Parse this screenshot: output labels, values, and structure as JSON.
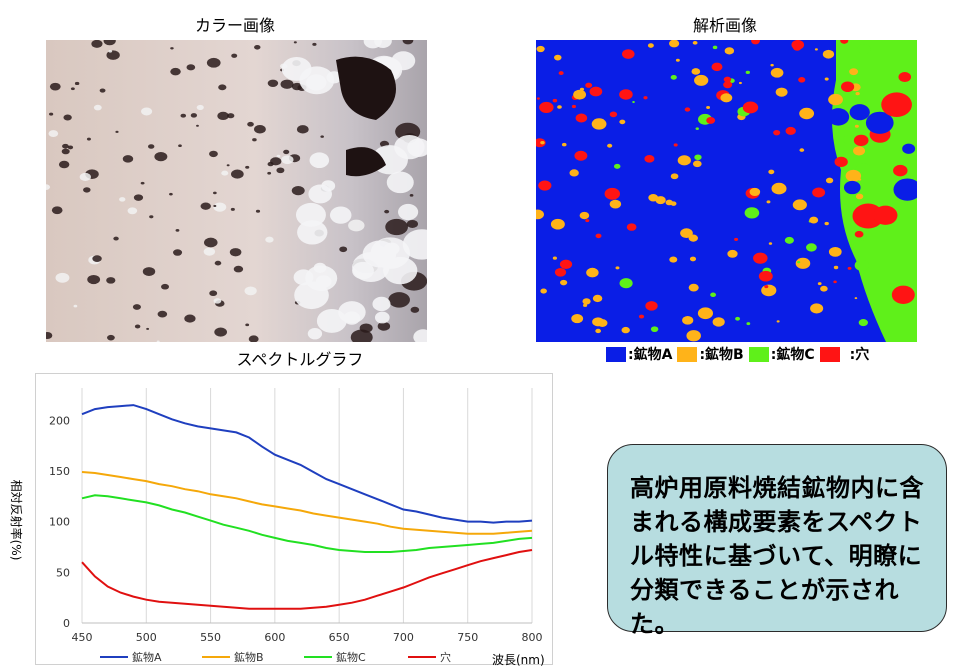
{
  "titles": {
    "color": "カラー画像",
    "analysis": "解析画像",
    "spectrum": "スペクトルグラフ"
  },
  "mineral_legend": [
    {
      "label": ":鉱物A",
      "color": "#0a1ee6"
    },
    {
      "label": ":鉱物B",
      "color": "#ffb319"
    },
    {
      "label": ":鉱物C",
      "color": "#5ff01a"
    },
    {
      "label": ":穴",
      "color": "#ff1414"
    }
  ],
  "conclusion": "高炉用原料焼結鉱物内に含まれる構成要素をスペクトル特性に基づいて、明瞭に分類できることが示された。",
  "chart_data": {
    "type": "line",
    "ylabel": "相対反射率(%)",
    "xlabel": "波長(nm)",
    "xlim": [
      450,
      800
    ],
    "ylim": [
      0,
      220
    ],
    "x_ticks": [
      450,
      500,
      550,
      600,
      650,
      700,
      750,
      800
    ],
    "y_ticks": [
      0,
      50,
      100,
      150,
      200
    ],
    "grid": "vertical",
    "legend_position": "bottom",
    "series": [
      {
        "name": "鉱物A",
        "color": "#1f3fbf",
        "points": [
          [
            450,
            206
          ],
          [
            460,
            211
          ],
          [
            470,
            213
          ],
          [
            480,
            214
          ],
          [
            490,
            215
          ],
          [
            500,
            211
          ],
          [
            510,
            206
          ],
          [
            520,
            201
          ],
          [
            530,
            197
          ],
          [
            540,
            194
          ],
          [
            550,
            192
          ],
          [
            560,
            190
          ],
          [
            570,
            188
          ],
          [
            580,
            183
          ],
          [
            590,
            174
          ],
          [
            600,
            166
          ],
          [
            610,
            161
          ],
          [
            620,
            156
          ],
          [
            630,
            149
          ],
          [
            640,
            142
          ],
          [
            650,
            137
          ],
          [
            660,
            132
          ],
          [
            670,
            127
          ],
          [
            680,
            122
          ],
          [
            690,
            117
          ],
          [
            700,
            112
          ],
          [
            710,
            110
          ],
          [
            720,
            107
          ],
          [
            730,
            104
          ],
          [
            740,
            102
          ],
          [
            750,
            100
          ],
          [
            760,
            100
          ],
          [
            770,
            99
          ],
          [
            780,
            100
          ],
          [
            790,
            100
          ],
          [
            800,
            101
          ]
        ]
      },
      {
        "name": "鉱物B",
        "color": "#f5a80a",
        "points": [
          [
            450,
            149
          ],
          [
            460,
            148
          ],
          [
            470,
            146
          ],
          [
            480,
            144
          ],
          [
            490,
            142
          ],
          [
            500,
            140
          ],
          [
            510,
            137
          ],
          [
            520,
            135
          ],
          [
            530,
            132
          ],
          [
            540,
            130
          ],
          [
            550,
            127
          ],
          [
            560,
            125
          ],
          [
            570,
            123
          ],
          [
            580,
            120
          ],
          [
            590,
            117
          ],
          [
            600,
            115
          ],
          [
            610,
            113
          ],
          [
            620,
            111
          ],
          [
            630,
            108
          ],
          [
            640,
            106
          ],
          [
            650,
            104
          ],
          [
            660,
            102
          ],
          [
            670,
            100
          ],
          [
            680,
            98
          ],
          [
            690,
            95
          ],
          [
            700,
            93
          ],
          [
            710,
            92
          ],
          [
            720,
            91
          ],
          [
            730,
            90
          ],
          [
            740,
            89
          ],
          [
            750,
            88
          ],
          [
            760,
            88
          ],
          [
            770,
            88
          ],
          [
            780,
            89
          ],
          [
            790,
            90
          ],
          [
            800,
            91
          ]
        ]
      },
      {
        "name": "鉱物C",
        "color": "#22e022",
        "points": [
          [
            450,
            123
          ],
          [
            460,
            126
          ],
          [
            470,
            125
          ],
          [
            480,
            123
          ],
          [
            490,
            121
          ],
          [
            500,
            119
          ],
          [
            510,
            116
          ],
          [
            520,
            112
          ],
          [
            530,
            109
          ],
          [
            540,
            105
          ],
          [
            550,
            101
          ],
          [
            560,
            97
          ],
          [
            570,
            94
          ],
          [
            580,
            91
          ],
          [
            590,
            87
          ],
          [
            600,
            84
          ],
          [
            610,
            81
          ],
          [
            620,
            79
          ],
          [
            630,
            77
          ],
          [
            640,
            74
          ],
          [
            650,
            72
          ],
          [
            660,
            71
          ],
          [
            670,
            70
          ],
          [
            680,
            70
          ],
          [
            690,
            70
          ],
          [
            700,
            71
          ],
          [
            710,
            72
          ],
          [
            720,
            74
          ],
          [
            730,
            75
          ],
          [
            740,
            76
          ],
          [
            750,
            77
          ],
          [
            760,
            78
          ],
          [
            770,
            79
          ],
          [
            780,
            81
          ],
          [
            790,
            83
          ],
          [
            800,
            84
          ]
        ]
      },
      {
        "name": "穴",
        "color": "#e01010",
        "points": [
          [
            450,
            60
          ],
          [
            460,
            46
          ],
          [
            470,
            36
          ],
          [
            480,
            30
          ],
          [
            490,
            26
          ],
          [
            500,
            23
          ],
          [
            510,
            21
          ],
          [
            520,
            20
          ],
          [
            530,
            19
          ],
          [
            540,
            18
          ],
          [
            550,
            17
          ],
          [
            560,
            16
          ],
          [
            570,
            15
          ],
          [
            580,
            14
          ],
          [
            590,
            14
          ],
          [
            600,
            14
          ],
          [
            610,
            14
          ],
          [
            620,
            14
          ],
          [
            630,
            15
          ],
          [
            640,
            16
          ],
          [
            650,
            18
          ],
          [
            660,
            20
          ],
          [
            670,
            23
          ],
          [
            680,
            27
          ],
          [
            690,
            31
          ],
          [
            700,
            35
          ],
          [
            710,
            40
          ],
          [
            720,
            45
          ],
          [
            730,
            49
          ],
          [
            740,
            53
          ],
          [
            750,
            57
          ],
          [
            760,
            61
          ],
          [
            770,
            64
          ],
          [
            780,
            67
          ],
          [
            790,
            70
          ],
          [
            800,
            72
          ]
        ]
      }
    ]
  }
}
